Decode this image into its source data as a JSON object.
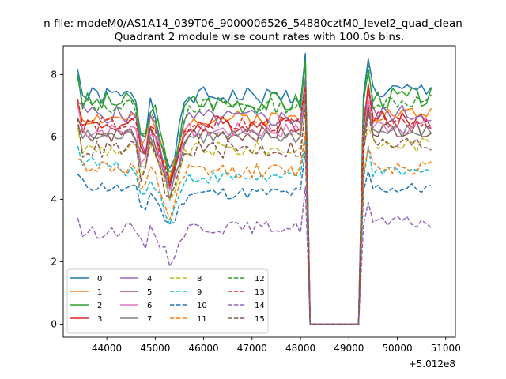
{
  "chart_data": {
    "type": "line",
    "suptitle": "n file: modeM0/AS1A14_039T06_9000006526_54880cztM0_level2_quad_clean",
    "title": "Quadrant 2 module wise count rates with 100.0s bins.",
    "xlabel": "",
    "ylabel": "",
    "x_offset_label": "+5.012e8",
    "xlim": [
      43100,
      51200
    ],
    "ylim": [
      -0.42,
      8.92
    ],
    "xticks": [
      44000,
      45000,
      46000,
      47000,
      48000,
      49000,
      50000,
      51000
    ],
    "xtick_labels": [
      "44000",
      "45000",
      "46000",
      "47000",
      "48000",
      "49000",
      "50000",
      "51000"
    ],
    "yticks": [
      0,
      2,
      4,
      6,
      8
    ],
    "ytick_labels": [
      "0",
      "2",
      "4",
      "6",
      "8"
    ],
    "legend_location": "lower-left",
    "legend_columns": 4,
    "series": [
      {
        "name": "0",
        "color": "#1f77b4",
        "dash": "solid",
        "base": 7.3,
        "amp": 0.3,
        "seed": 1,
        "dip": 2.6,
        "early": 0.0,
        "start": 8.15,
        "peak": 8.5
      },
      {
        "name": "1",
        "color": "#ff7f0e",
        "dash": "solid",
        "base": 6.6,
        "amp": 0.25,
        "seed": 2,
        "dip": 2.0,
        "early": 0.0,
        "start": 7.0,
        "peak": 7.6
      },
      {
        "name": "2",
        "color": "#2ca02c",
        "dash": "solid",
        "base": 7.1,
        "amp": 0.35,
        "seed": 3,
        "dip": 2.5,
        "early": 0.0,
        "start": 8.0,
        "peak": 8.1
      },
      {
        "name": "3",
        "color": "#d62728",
        "dash": "solid",
        "base": 6.4,
        "amp": 0.3,
        "seed": 4,
        "dip": 2.0,
        "early": 0.0,
        "start": 7.1,
        "peak": 7.7
      },
      {
        "name": "4",
        "color": "#9467bd",
        "dash": "solid",
        "base": 6.6,
        "amp": 0.3,
        "seed": 5,
        "dip": 2.1,
        "early": 0.2,
        "start": 7.1,
        "peak": 7.4
      },
      {
        "name": "5",
        "color": "#8c564b",
        "dash": "solid",
        "base": 6.1,
        "amp": 0.25,
        "seed": 6,
        "dip": 1.8,
        "early": 0.0,
        "start": 6.6,
        "peak": 7.0
      },
      {
        "name": "6",
        "color": "#e377c2",
        "dash": "solid",
        "base": 6.2,
        "amp": 0.25,
        "seed": 7,
        "dip": 1.9,
        "early": 0.0,
        "start": 7.0,
        "peak": 7.2
      },
      {
        "name": "7",
        "color": "#7f7f7f",
        "dash": "solid",
        "base": 6.0,
        "amp": 0.25,
        "seed": 8,
        "dip": 1.8,
        "early": 0.0,
        "start": 6.4,
        "peak": 6.8
      },
      {
        "name": "8",
        "color": "#bcbd22",
        "dash": "dashed",
        "base": 5.6,
        "amp": 0.25,
        "seed": 9,
        "dip": 1.7,
        "early": 0.0,
        "start": 6.3,
        "peak": 6.3
      },
      {
        "name": "9",
        "color": "#17becf",
        "dash": "dashed",
        "base": 4.7,
        "amp": 0.2,
        "seed": 10,
        "dip": 1.4,
        "early": 0.6,
        "start": 5.7,
        "peak": 5.7
      },
      {
        "name": "10",
        "color": "#1f77b4",
        "dash": "dashed",
        "base": 4.2,
        "amp": 0.2,
        "seed": 11,
        "dip": 1.1,
        "early": 0.3,
        "start": 4.8,
        "peak": 4.9
      },
      {
        "name": "11",
        "color": "#ff7f0e",
        "dash": "dashed",
        "base": 4.9,
        "amp": 0.25,
        "seed": 12,
        "dip": 1.5,
        "early": 0.2,
        "start": 5.3,
        "peak": 5.7
      },
      {
        "name": "12",
        "color": "#2ca02c",
        "dash": "dashed",
        "base": 7.0,
        "amp": 0.25,
        "seed": 13,
        "dip": 2.4,
        "early": 0.0,
        "start": 7.9,
        "peak": 8.3
      },
      {
        "name": "13",
        "color": "#d62728",
        "dash": "dashed",
        "base": 6.4,
        "amp": 0.25,
        "seed": 14,
        "dip": 2.0,
        "early": 0.0,
        "start": 7.2,
        "peak": 7.6
      },
      {
        "name": "14",
        "color": "#9467bd",
        "dash": "dashed",
        "base": 3.1,
        "amp": 0.2,
        "seed": 15,
        "dip": 1.1,
        "early": -0.2,
        "start": 3.4,
        "peak": 3.9
      },
      {
        "name": "15",
        "color": "#8c564b",
        "dash": "dashed",
        "base": 5.6,
        "amp": 0.3,
        "seed": 16,
        "dip": 1.7,
        "early": 0.0,
        "start": 6.6,
        "peak": 6.8
      }
    ],
    "time_grid": {
      "start": 43400,
      "end": 50700,
      "step": 100
    },
    "gap": {
      "start": 48200,
      "end": 49200,
      "value": 0
    },
    "dip_center": 45300,
    "pre_gap_peak_at": 48100,
    "post_gap_peak_at": 49400
  }
}
